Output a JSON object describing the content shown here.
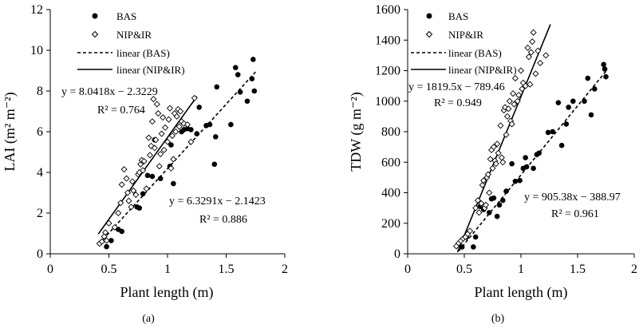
{
  "chart_data": [
    {
      "type": "scatter",
      "panel_label": "(a)",
      "xlabel": "Plant length (m)",
      "ylabel": "LAI (m² m⁻²)",
      "xlim": [
        0,
        2
      ],
      "ylim": [
        0,
        12
      ],
      "xticks": [
        "0",
        "0.5",
        "1",
        "1.5",
        "2"
      ],
      "yticks": [
        "0",
        "2",
        "4",
        "6",
        "8",
        "10",
        "12"
      ],
      "legend": [
        "BAS",
        "NIP&IR",
        "linear (BAS)",
        "linear (NIP&IR)"
      ],
      "series": [
        {
          "name": "BAS",
          "marker": "filled-circle",
          "points": [
            [
              0.48,
              0.35
            ],
            [
              0.52,
              0.65
            ],
            [
              0.58,
              1.2
            ],
            [
              0.61,
              1.1
            ],
            [
              0.74,
              2.3
            ],
            [
              0.76,
              2.25
            ],
            [
              0.79,
              2.95
            ],
            [
              0.83,
              3.85
            ],
            [
              0.87,
              3.8
            ],
            [
              0.89,
              5.6
            ],
            [
              0.94,
              3.7
            ],
            [
              1.02,
              4.3
            ],
            [
              1.03,
              5.35
            ],
            [
              1.05,
              3.45
            ],
            [
              1.12,
              6.0
            ],
            [
              1.14,
              6.1
            ],
            [
              1.17,
              6.15
            ],
            [
              1.2,
              6.1
            ],
            [
              1.25,
              5.9
            ],
            [
              1.27,
              7.2
            ],
            [
              1.33,
              6.3
            ],
            [
              1.36,
              6.35
            ],
            [
              1.4,
              4.4
            ],
            [
              1.41,
              5.75
            ],
            [
              1.42,
              8.2
            ],
            [
              1.54,
              6.35
            ],
            [
              1.58,
              9.15
            ],
            [
              1.6,
              8.8
            ],
            [
              1.62,
              7.95
            ],
            [
              1.68,
              7.5
            ],
            [
              1.72,
              8.6
            ],
            [
              1.73,
              9.55
            ],
            [
              1.74,
              8.0
            ]
          ]
        },
        {
          "name": "NIP&IR",
          "marker": "open-diamond",
          "points": [
            [
              0.42,
              0.5
            ],
            [
              0.44,
              0.6
            ],
            [
              0.46,
              0.85
            ],
            [
              0.47,
              1.05
            ],
            [
              0.48,
              0.65
            ],
            [
              0.5,
              1.5
            ],
            [
              0.55,
              1.3
            ],
            [
              0.58,
              2.0
            ],
            [
              0.6,
              2.5
            ],
            [
              0.61,
              3.4
            ],
            [
              0.63,
              4.15
            ],
            [
              0.65,
              3.7
            ],
            [
              0.66,
              3.0
            ],
            [
              0.67,
              2.6
            ],
            [
              0.69,
              2.3
            ],
            [
              0.7,
              3.55
            ],
            [
              0.71,
              3.1
            ],
            [
              0.73,
              2.9
            ],
            [
              0.75,
              3.9
            ],
            [
              0.76,
              4.0
            ],
            [
              0.77,
              4.4
            ],
            [
              0.78,
              4.6
            ],
            [
              0.79,
              4.1
            ],
            [
              0.8,
              4.55
            ],
            [
              0.82,
              3.2
            ],
            [
              0.84,
              5.7
            ],
            [
              0.85,
              4.85
            ],
            [
              0.86,
              5.3
            ],
            [
              0.87,
              6.5
            ],
            [
              0.88,
              7.6
            ],
            [
              0.89,
              5.2
            ],
            [
              0.9,
              5.6
            ],
            [
              0.91,
              7.35
            ],
            [
              0.92,
              6.9
            ],
            [
              0.93,
              4.3
            ],
            [
              0.94,
              4.9
            ],
            [
              0.95,
              5.9
            ],
            [
              0.96,
              6.7
            ],
            [
              0.97,
              5.1
            ],
            [
              0.98,
              6.2
            ],
            [
              1.0,
              5.5
            ],
            [
              1.01,
              6.6
            ],
            [
              1.02,
              7.15
            ],
            [
              1.03,
              4.2
            ],
            [
              1.04,
              5.8
            ],
            [
              1.05,
              4.65
            ],
            [
              1.06,
              6.9
            ],
            [
              1.07,
              6.0
            ],
            [
              1.08,
              6.75
            ],
            [
              1.09,
              7.1
            ],
            [
              1.1,
              6.25
            ],
            [
              1.11,
              7.0
            ],
            [
              1.12,
              6.5
            ],
            [
              1.14,
              6.4
            ],
            [
              1.17,
              6.35
            ],
            [
              1.2,
              5.5
            ],
            [
              1.23,
              7.65
            ]
          ]
        }
      ],
      "fits": [
        {
          "name": "linear (BAS)",
          "style": "dashed",
          "slope": 6.3291,
          "intercept": -2.1423,
          "x_range": [
            0.45,
            1.75
          ],
          "equation": "y = 6.3291x − 2.1423",
          "r2": "R² = 0.886"
        },
        {
          "name": "linear (NIP&IR)",
          "style": "solid",
          "slope": 8.0418,
          "intercept": -2.3229,
          "x_range": [
            0.41,
            1.25
          ],
          "equation": "y = 8.0418x − 2.3229",
          "r2": "R² = 0.764"
        }
      ]
    },
    {
      "type": "scatter",
      "panel_label": "(b)",
      "xlabel": "Plant length (m)",
      "ylabel": "TDW (g m⁻²)",
      "xlim": [
        0,
        2
      ],
      "ylim": [
        0,
        1600
      ],
      "xticks": [
        "0",
        "0.5",
        "1",
        "1.5",
        "2"
      ],
      "yticks": [
        "0",
        "200",
        "400",
        "600",
        "800",
        "1000",
        "1200",
        "1400",
        "1600"
      ],
      "legend": [
        "BAS",
        "NIP&IR",
        "linear (BAS)",
        "linear (NIP&IR)"
      ],
      "series": [
        {
          "name": "BAS",
          "marker": "filled-circle",
          "points": [
            [
              0.48,
              45
            ],
            [
              0.52,
              110
            ],
            [
              0.58,
              45
            ],
            [
              0.6,
              110
            ],
            [
              0.64,
              310
            ],
            [
              0.67,
              290
            ],
            [
              0.72,
              270
            ],
            [
              0.74,
              360
            ],
            [
              0.76,
              365
            ],
            [
              0.79,
              245
            ],
            [
              0.81,
              320
            ],
            [
              0.84,
              350
            ],
            [
              0.87,
              410
            ],
            [
              0.92,
              590
            ],
            [
              0.95,
              475
            ],
            [
              0.99,
              480
            ],
            [
              1.02,
              560
            ],
            [
              1.04,
              630
            ],
            [
              1.05,
              570
            ],
            [
              1.11,
              560
            ],
            [
              1.14,
              650
            ],
            [
              1.16,
              660
            ],
            [
              1.24,
              795
            ],
            [
              1.28,
              800
            ],
            [
              1.33,
              990
            ],
            [
              1.36,
              710
            ],
            [
              1.4,
              850
            ],
            [
              1.42,
              960
            ],
            [
              1.46,
              1000
            ],
            [
              1.56,
              1000
            ],
            [
              1.59,
              1150
            ],
            [
              1.62,
              910
            ],
            [
              1.65,
              1080
            ],
            [
              1.73,
              1240
            ],
            [
              1.74,
              1210
            ],
            [
              1.75,
              1160
            ]
          ]
        },
        {
          "name": "NIP&IR",
          "marker": "open-diamond",
          "points": [
            [
              0.43,
              50
            ],
            [
              0.45,
              70
            ],
            [
              0.47,
              85
            ],
            [
              0.49,
              100
            ],
            [
              0.51,
              110
            ],
            [
              0.53,
              130
            ],
            [
              0.55,
              150
            ],
            [
              0.6,
              300
            ],
            [
              0.62,
              350
            ],
            [
              0.63,
              270
            ],
            [
              0.65,
              330
            ],
            [
              0.66,
              450
            ],
            [
              0.67,
              480
            ],
            [
              0.68,
              300
            ],
            [
              0.69,
              320
            ],
            [
              0.7,
              500
            ],
            [
              0.71,
              520
            ],
            [
              0.72,
              400
            ],
            [
              0.73,
              620
            ],
            [
              0.74,
              680
            ],
            [
              0.75,
              560
            ],
            [
              0.76,
              700
            ],
            [
              0.77,
              610
            ],
            [
              0.78,
              590
            ],
            [
              0.79,
              720
            ],
            [
              0.8,
              660
            ],
            [
              0.82,
              840
            ],
            [
              0.83,
              630
            ],
            [
              0.84,
              600
            ],
            [
              0.85,
              940
            ],
            [
              0.86,
              960
            ],
            [
              0.87,
              780
            ],
            [
              0.88,
              900
            ],
            [
              0.89,
              950
            ],
            [
              0.9,
              1000
            ],
            [
              0.91,
              870
            ],
            [
              0.92,
              850
            ],
            [
              0.93,
              1050
            ],
            [
              0.94,
              980
            ],
            [
              0.95,
              1150
            ],
            [
              0.97,
              1000
            ],
            [
              0.98,
              1040
            ],
            [
              1.0,
              1200
            ],
            [
              1.01,
              1080
            ],
            [
              1.02,
              1120
            ],
            [
              1.04,
              1100
            ],
            [
              1.06,
              1350
            ],
            [
              1.07,
              1290
            ],
            [
              1.08,
              1110
            ],
            [
              1.09,
              1320
            ],
            [
              1.1,
              1390
            ],
            [
              1.11,
              1450
            ],
            [
              1.13,
              1180
            ],
            [
              1.15,
              1330
            ],
            [
              1.17,
              1250
            ],
            [
              1.22,
              1300
            ]
          ]
        }
      ],
      "fits": [
        {
          "name": "linear (BAS)",
          "style": "dashed",
          "slope": 905.38,
          "intercept": -388.97,
          "x_range": [
            0.45,
            1.75
          ],
          "equation": "y = 905.38x − 388.97",
          "r2": "R² = 0.961"
        },
        {
          "name": "linear (NIP&IR)",
          "style": "solid",
          "slope": 1819.5,
          "intercept": -789.46,
          "x_range": [
            0.44,
            1.26
          ],
          "equation": "y = 1819.5x − 789.46",
          "r2": "R² = 0.949"
        }
      ]
    }
  ]
}
